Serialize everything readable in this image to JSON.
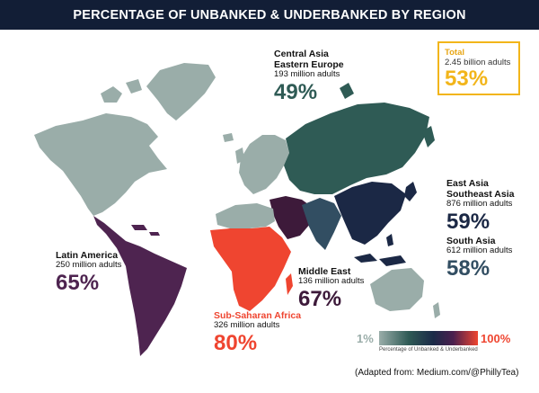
{
  "title": "PERCENTAGE OF UNBANKED & UNDERBANKED BY REGION",
  "regions": {
    "central_asia": {
      "name_line1": "Central Asia",
      "name_line2": "Eastern Europe",
      "adults": "193 million adults",
      "percent": "49%",
      "color": "#2f5b55"
    },
    "east_asia": {
      "name_line1": "East Asia",
      "name_line2": "Southeast Asia",
      "adults": "876 million adults",
      "percent": "59%",
      "color": "#1b2845"
    },
    "south_asia": {
      "name": "South Asia",
      "adults": "612 million adults",
      "percent": "58%",
      "color": "#324e62"
    },
    "latin_america": {
      "name": "Latin America",
      "adults": "250 million adults",
      "percent": "65%",
      "color": "#4e2450"
    },
    "middle_east": {
      "name": "Middle East",
      "adults": "136 million adults",
      "percent": "67%",
      "color": "#3d1a3a"
    },
    "sub_saharan_africa": {
      "name": "Sub-Saharan Africa",
      "adults": "326 million adults",
      "percent": "80%",
      "color": "#ef4530"
    }
  },
  "total": {
    "label": "Total",
    "adults": "2.45 billion adults",
    "percent": "53%",
    "color": "#f2b51a"
  },
  "legend": {
    "min": "1%",
    "max": "100%",
    "caption": "Percentage of Unbanked & Underbanked"
  },
  "credit": "(Adapted from: Medium.com/@PhillyTea)",
  "colors": {
    "low_income_land": "#9aada9",
    "header_bg": "#121e36"
  }
}
